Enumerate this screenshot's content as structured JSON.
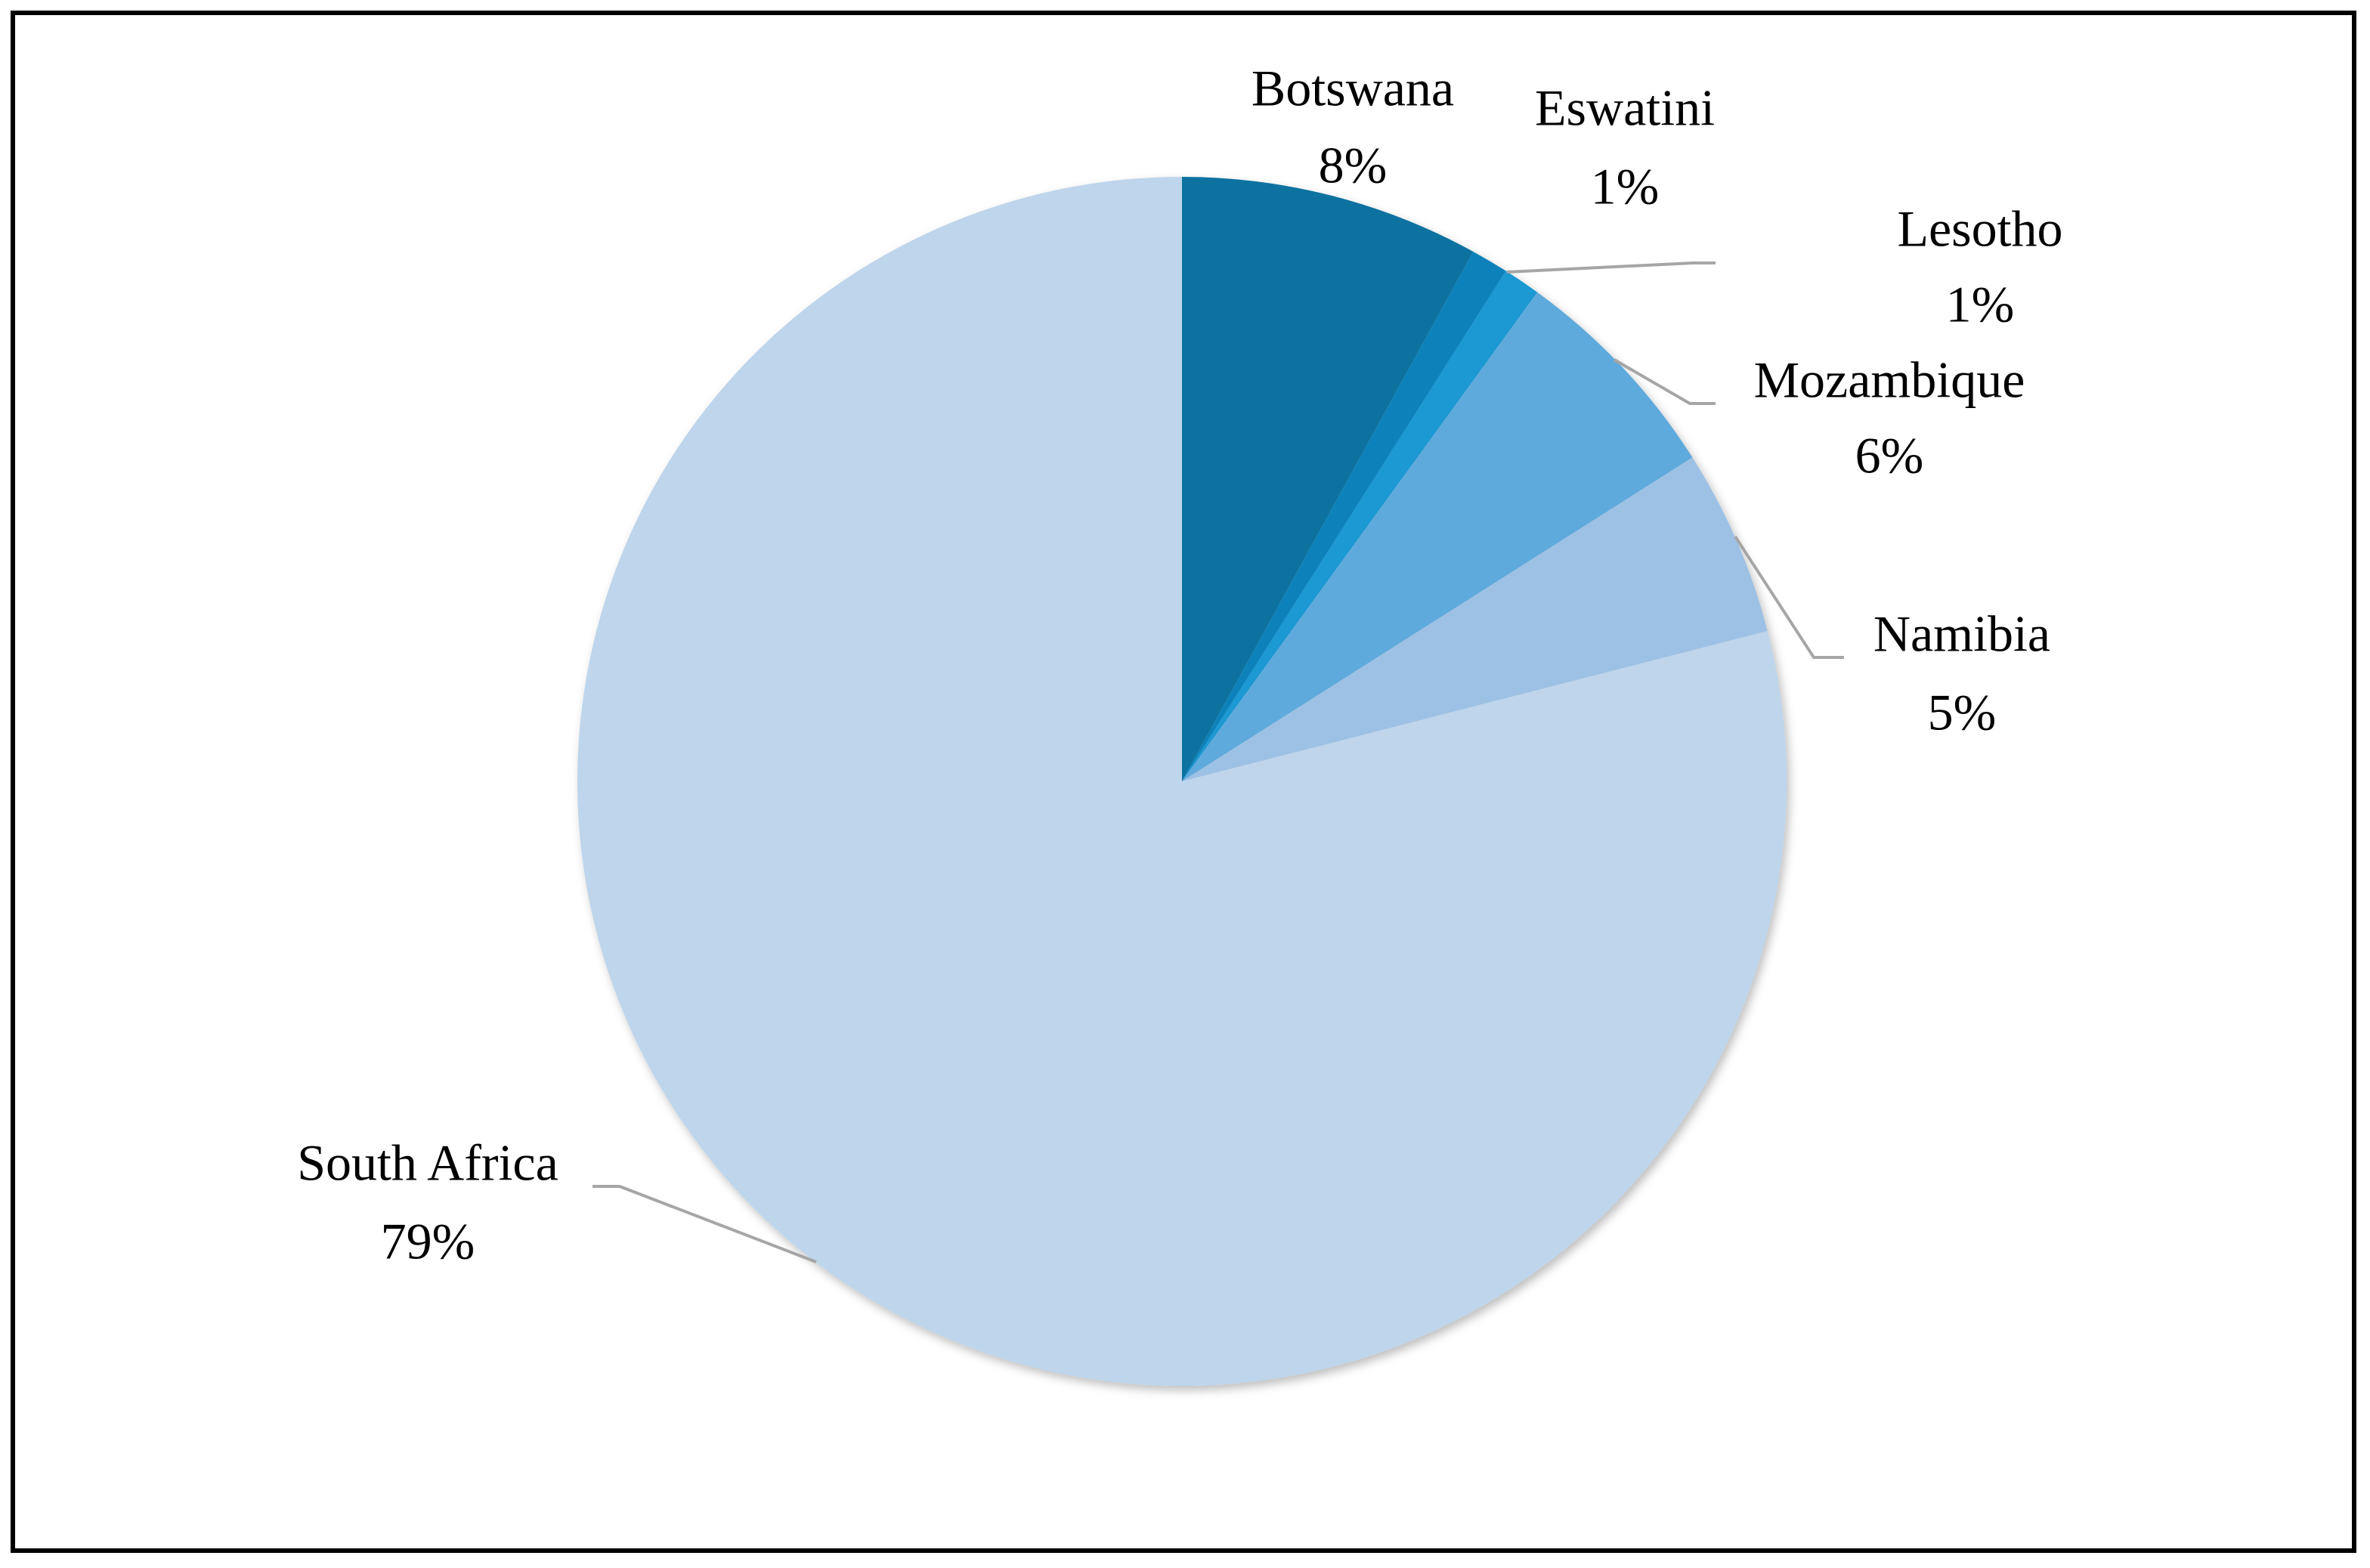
{
  "chart_data": {
    "type": "pie",
    "categories": [
      "Botswana",
      "Eswatini",
      "Lesotho",
      "Mozambique",
      "Namibia",
      "South Africa"
    ],
    "values": [
      8,
      1,
      1,
      6,
      5,
      79
    ],
    "value_labels": [
      "8%",
      "1%",
      "1%",
      "6%",
      "5%",
      "79%"
    ],
    "colors": [
      "#0e72a0",
      "#1182ba",
      "#1a98d2",
      "#5faadc",
      "#9dc1e4",
      "#bed5eb"
    ]
  }
}
